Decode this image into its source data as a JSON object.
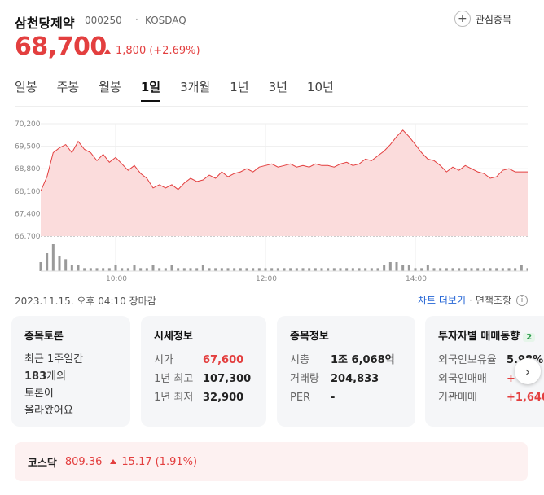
{
  "stock": {
    "name": "삼천당제약",
    "code": "000250",
    "separator": "·",
    "market": "KOSDAQ",
    "price": "68,700",
    "change": "1,800",
    "change_pct": "(+2.69%)",
    "favorite_label": "관심종목"
  },
  "tabs": [
    {
      "label": "일봉"
    },
    {
      "label": "주봉"
    },
    {
      "label": "월봉"
    },
    {
      "label": "1일",
      "active": true
    },
    {
      "label": "3개월"
    },
    {
      "label": "1년"
    },
    {
      "label": "3년"
    },
    {
      "label": "10년"
    }
  ],
  "chart_data": {
    "type": "area",
    "title": "",
    "y_ticks": [
      "70,200",
      "69,500",
      "68,800",
      "68,100",
      "67,400",
      "66,700"
    ],
    "ylim": [
      66700,
      70200
    ],
    "x_ticks": [
      "10:00",
      "12:00",
      "14:00"
    ],
    "x": [
      "09:00",
      "09:05",
      "09:10",
      "09:15",
      "09:20",
      "09:25",
      "09:30",
      "09:35",
      "09:40",
      "09:45",
      "09:50",
      "09:55",
      "10:00",
      "10:05",
      "10:10",
      "10:15",
      "10:20",
      "10:25",
      "10:30",
      "10:35",
      "10:40",
      "10:45",
      "10:50",
      "10:55",
      "11:00",
      "11:05",
      "11:10",
      "11:15",
      "11:20",
      "11:25",
      "11:30",
      "11:35",
      "11:40",
      "11:45",
      "11:50",
      "11:55",
      "12:00",
      "12:05",
      "12:10",
      "12:15",
      "12:20",
      "12:25",
      "12:30",
      "12:35",
      "12:40",
      "12:45",
      "12:50",
      "12:55",
      "13:00",
      "13:05",
      "13:10",
      "13:15",
      "13:20",
      "13:25",
      "13:30",
      "13:35",
      "13:40",
      "13:45",
      "13:50",
      "13:55",
      "14:00",
      "14:05",
      "14:10",
      "14:15",
      "14:20",
      "14:25",
      "14:30",
      "14:35",
      "14:40",
      "14:45",
      "14:50",
      "14:55",
      "15:00",
      "15:05",
      "15:10",
      "15:15",
      "15:20",
      "15:25",
      "15:30"
    ],
    "values": [
      68100,
      68550,
      69300,
      69450,
      69550,
      69300,
      69650,
      69400,
      69300,
      69050,
      69250,
      69000,
      69150,
      68950,
      68750,
      68900,
      68650,
      68500,
      68200,
      68300,
      68200,
      68300,
      68150,
      68350,
      68500,
      68400,
      68450,
      68600,
      68500,
      68700,
      68550,
      68650,
      68700,
      68800,
      68700,
      68850,
      68900,
      68950,
      68850,
      68900,
      68950,
      68850,
      68900,
      68850,
      68950,
      68900,
      68900,
      68850,
      68950,
      69000,
      68900,
      68950,
      69100,
      69050,
      69200,
      69350,
      69550,
      69800,
      70000,
      69800,
      69550,
      69300,
      69100,
      69050,
      68900,
      68700,
      68850,
      68750,
      68900,
      68800,
      68700,
      68650,
      68500,
      68550,
      68750,
      68800,
      68700,
      68700,
      68700
    ],
    "volume": [
      3,
      6,
      9,
      5,
      4,
      2,
      2,
      1,
      1,
      1,
      1,
      1,
      2,
      1,
      1,
      2,
      1,
      1,
      2,
      1,
      1,
      2,
      1,
      1,
      1,
      1,
      2,
      1,
      1,
      1,
      1,
      1,
      1,
      1,
      1,
      1,
      1,
      1,
      1,
      1,
      1,
      1,
      1,
      1,
      1,
      1,
      1,
      1,
      1,
      1,
      1,
      1,
      1,
      1,
      1,
      2,
      3,
      3,
      2,
      2,
      1,
      1,
      2,
      1,
      1,
      1,
      1,
      1,
      1,
      1,
      1,
      1,
      1,
      1,
      1,
      1,
      1,
      2,
      1
    ],
    "grid": true
  },
  "meta": {
    "timestamp": "2023.11.15. 오후 04:10 장마감",
    "more_chart": "차트 더보기",
    "sep": "·",
    "disclaimer": "면책조항",
    "info_icon": "ⓘ"
  },
  "cards": {
    "discussion": {
      "title": "종목토론",
      "line1": "최근 1주일간",
      "count": "183",
      "line2": "개의",
      "line3": "토론이",
      "line4": "올라왔어요"
    },
    "quote": {
      "title": "시세정보",
      "rows": [
        {
          "label": "시가",
          "value": "67,600",
          "red": true
        },
        {
          "label": "1년 최고",
          "value": "107,300"
        },
        {
          "label": "1년 최저",
          "value": "32,900"
        }
      ]
    },
    "info": {
      "title": "종목정보",
      "rows": [
        {
          "label": "시총",
          "value": "1조 6,068억"
        },
        {
          "label": "거래량",
          "value": "204,833"
        },
        {
          "label": "PER",
          "value": "-"
        }
      ]
    },
    "investor": {
      "title": "투자자별 매매동향",
      "badge": "2",
      "rows": [
        {
          "label": "외국인보유율",
          "value": "5.98%"
        },
        {
          "label": "외국인매매",
          "value": "+"
        },
        {
          "label": "기관매매",
          "value": "+1,640"
        }
      ]
    }
  },
  "next_icon": "chevron-right-icon",
  "index": {
    "name": "코스닥",
    "value": "809.36",
    "change": "15.17",
    "pct": "(1.91%)"
  },
  "colors": {
    "up": "#e33f3f",
    "fill": "#fbdcdc",
    "volume": "#9a9a9a"
  }
}
